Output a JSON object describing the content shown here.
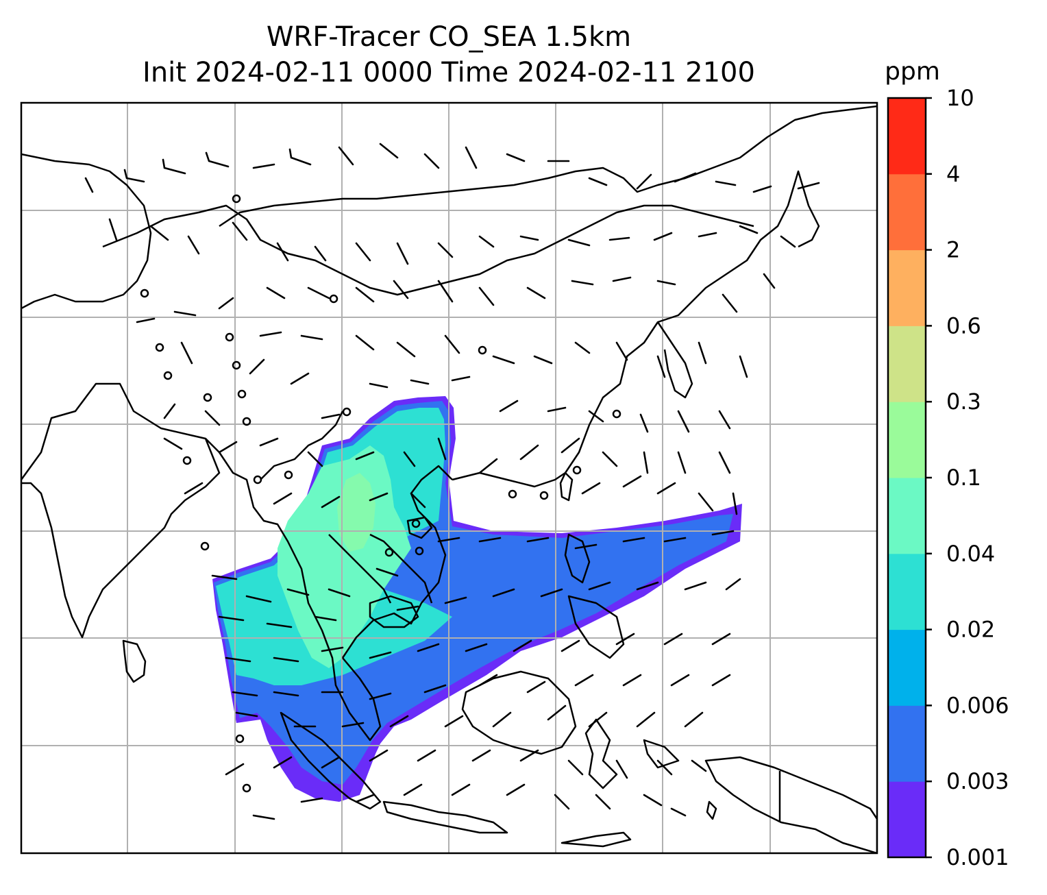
{
  "figure": {
    "title_line1": "WRF-Tracer CO_SEA 1.5km",
    "title_line2": "Init 2024-02-11 0000 Time 2024-02-11 2100"
  },
  "colorbar": {
    "unit": "ppm",
    "levels": [
      "0.001",
      "0.003",
      "0.006",
      "0.02",
      "0.04",
      "0.1",
      "0.3",
      "0.6",
      "2",
      "4",
      "10"
    ],
    "colors": [
      "#6a2cf8",
      "#3272f0",
      "#00b1eb",
      "#2de0d3",
      "#6bf9c4",
      "#9afb9a",
      "#cee388",
      "#feb05f",
      "#ff6f3a",
      "#ff2a17"
    ]
  },
  "map": {
    "grid_lines": true,
    "coastline_color": "#000000",
    "grid_color": "#b0b0b0",
    "wind_barb_color": "#000000"
  }
}
